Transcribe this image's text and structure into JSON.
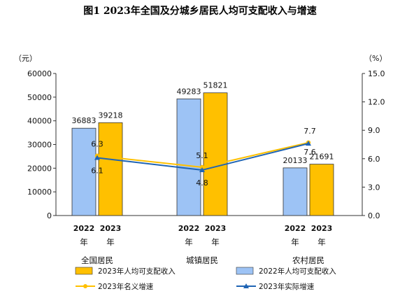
{
  "chart_data": {
    "type": "bar",
    "title": "图1   2023年全国及分城乡居民人均可支配收入与增速",
    "categories": [
      "全国居民",
      "城镇居民",
      "农村居民"
    ],
    "year_labels": [
      "2022",
      "2023"
    ],
    "year_suffix": "年",
    "y_unit": "（元）",
    "y2_unit": "（%）",
    "ylim": [
      0,
      60000
    ],
    "yticks": [
      "0",
      "10000",
      "20000",
      "30000",
      "40000",
      "50000",
      "60000"
    ],
    "y2lim": [
      0,
      15
    ],
    "y2ticks": [
      "0.0",
      "3.0",
      "6.0",
      "9.0",
      "12.0",
      "15.0"
    ],
    "series": [
      {
        "name": "2022年人均可支配收入",
        "type": "bar",
        "color": "#9dc3f5",
        "values": [
          36883,
          49283,
          20133
        ],
        "labels": [
          "36883",
          "49283",
          "20133"
        ]
      },
      {
        "name": "2023年人均可支配收入",
        "type": "bar",
        "color": "#ffc000",
        "values": [
          39218,
          51821,
          21691
        ],
        "labels": [
          "39218",
          "51821",
          "21691"
        ]
      },
      {
        "name": "2023年名义增速",
        "type": "line",
        "axis": "right",
        "color": "#ffc000",
        "values": [
          6.3,
          5.1,
          7.7
        ],
        "labels": [
          "6.3",
          "5.1",
          "7.7"
        ]
      },
      {
        "name": "2023年实际增速",
        "type": "line",
        "axis": "right",
        "color": "#1f64b4",
        "values": [
          6.1,
          4.8,
          7.6
        ],
        "labels": [
          "6.1",
          "4.8",
          "7.6"
        ]
      }
    ]
  }
}
